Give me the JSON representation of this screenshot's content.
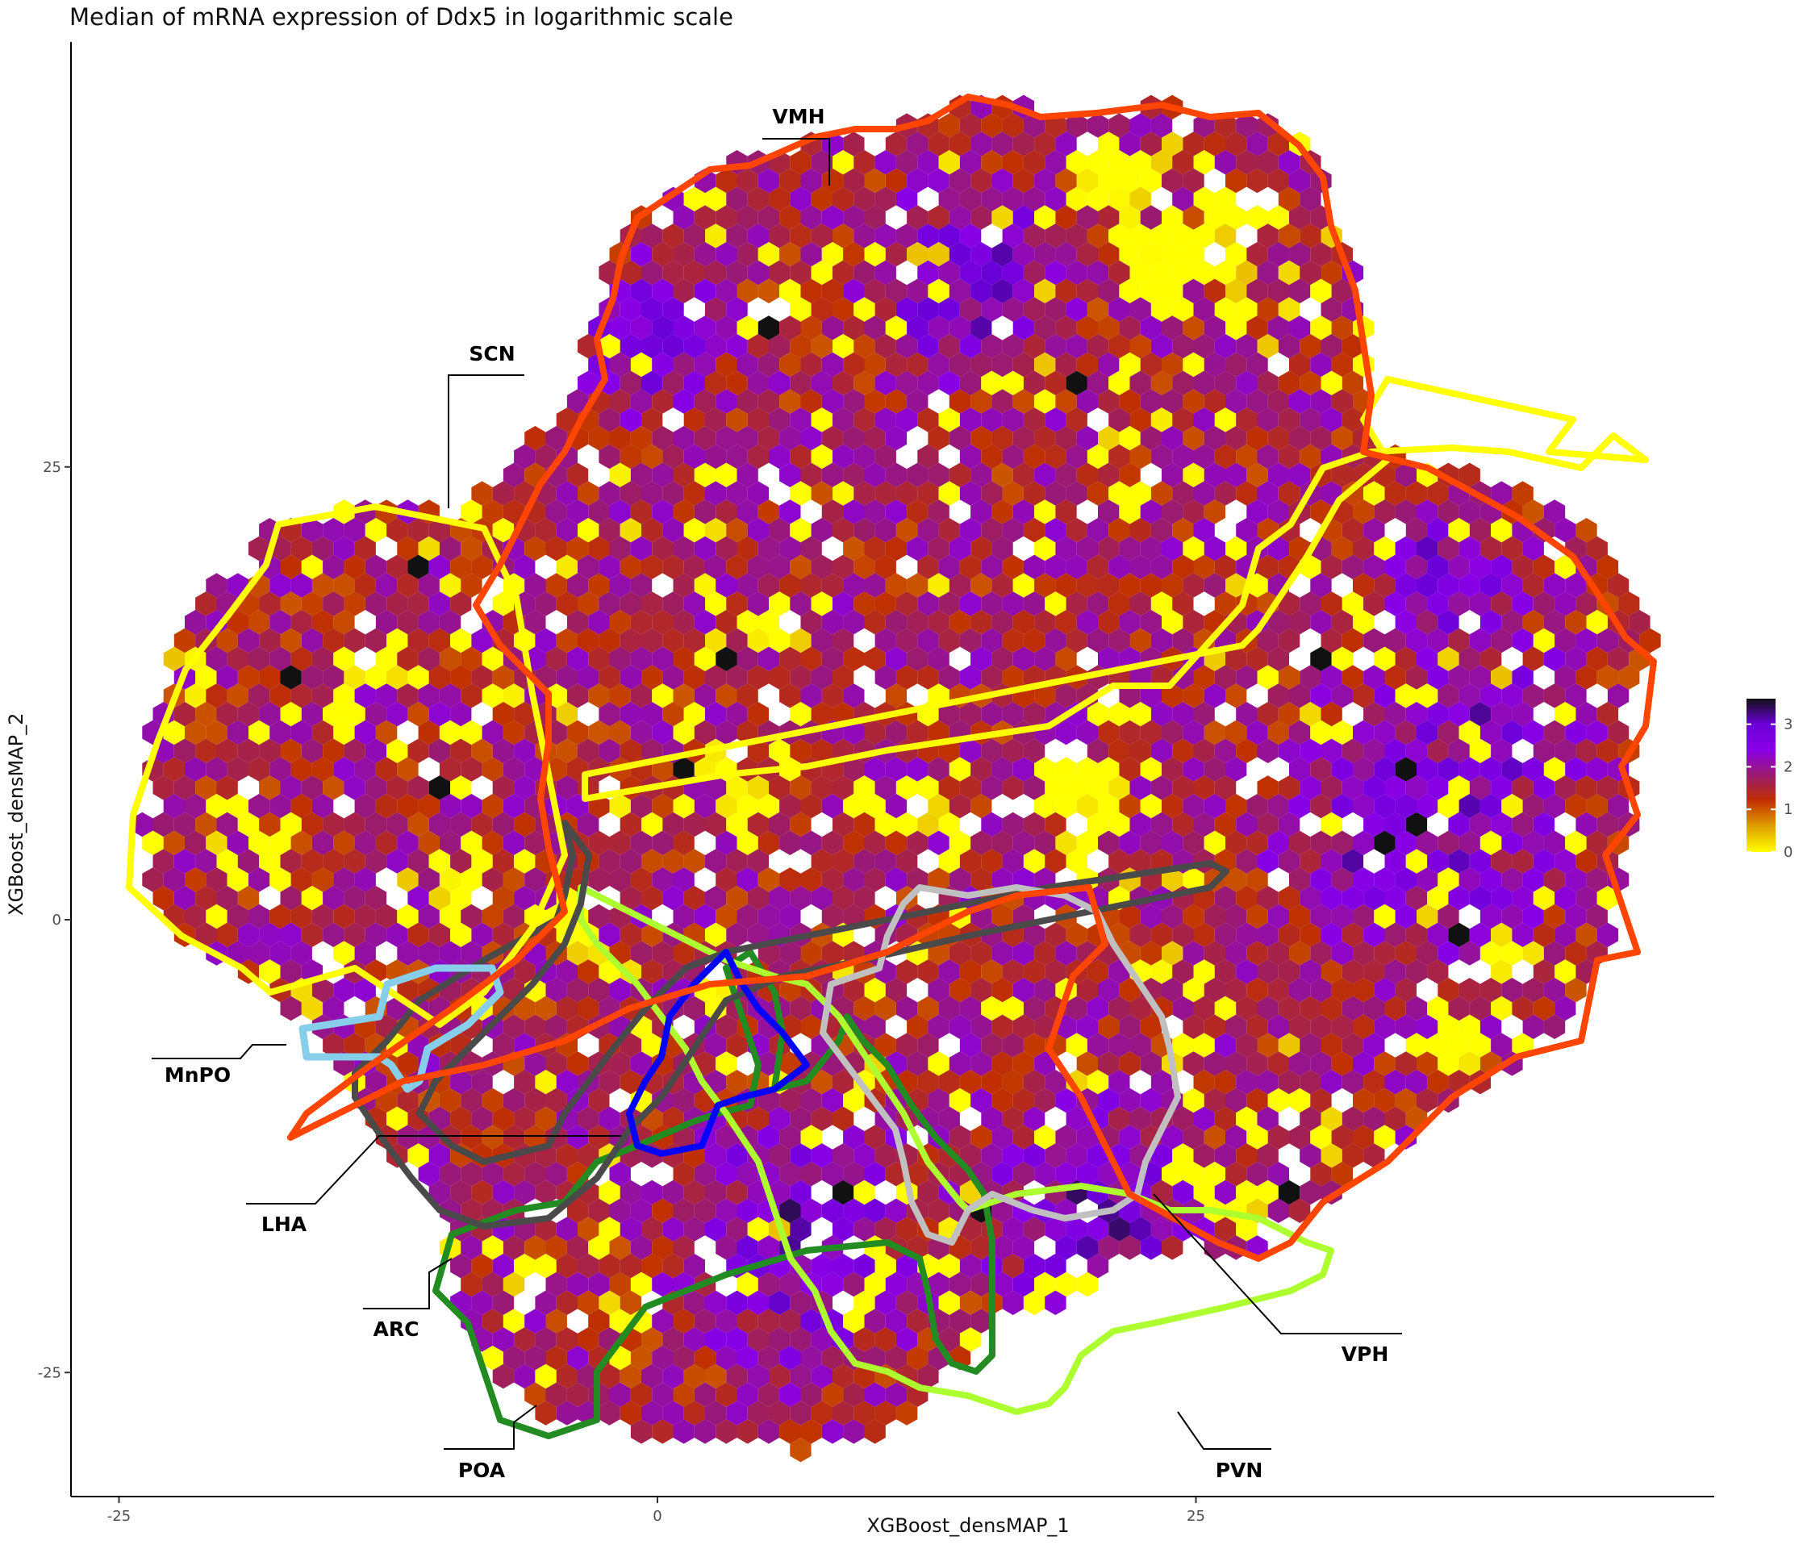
{
  "chart_data": {
    "type": "heatmap",
    "subtype": "hexbin",
    "title": "Median of mRNA expression of Ddx5 in logarithmic scale",
    "xlabel": "XGBoost_densMAP_1",
    "ylabel": "XGBoost_densMAP_2",
    "x_ticks": [
      -25,
      0,
      25
    ],
    "y_ticks": [
      25,
      0,
      -25
    ],
    "xlim": [
      -27.5,
      49.5
    ],
    "ylim": [
      -32,
      48.5
    ],
    "legend": {
      "position": "right",
      "ticks": [
        0,
        1,
        2,
        3
      ],
      "range": [
        0,
        3.6
      ],
      "colors": [
        "#ffff00",
        "#e0a000",
        "#c03000",
        "#9a1b6e",
        "#8a00e6",
        "#6a00d8",
        "#111111"
      ]
    },
    "regions": [
      {
        "name": "VMH",
        "color": "#ff4500"
      },
      {
        "name": "SCN",
        "color": "#ffff00"
      },
      {
        "name": "MnPO",
        "color": "#87ceeb"
      },
      {
        "name": "LHA",
        "color": "#4a4a4a"
      },
      {
        "name": "ARC",
        "color": "#0000ff"
      },
      {
        "name": "POA",
        "color": "#228b22"
      },
      {
        "name": "PVN",
        "color": "#adff2f"
      },
      {
        "name": "VPH",
        "color": "#c0c0c0"
      }
    ]
  }
}
